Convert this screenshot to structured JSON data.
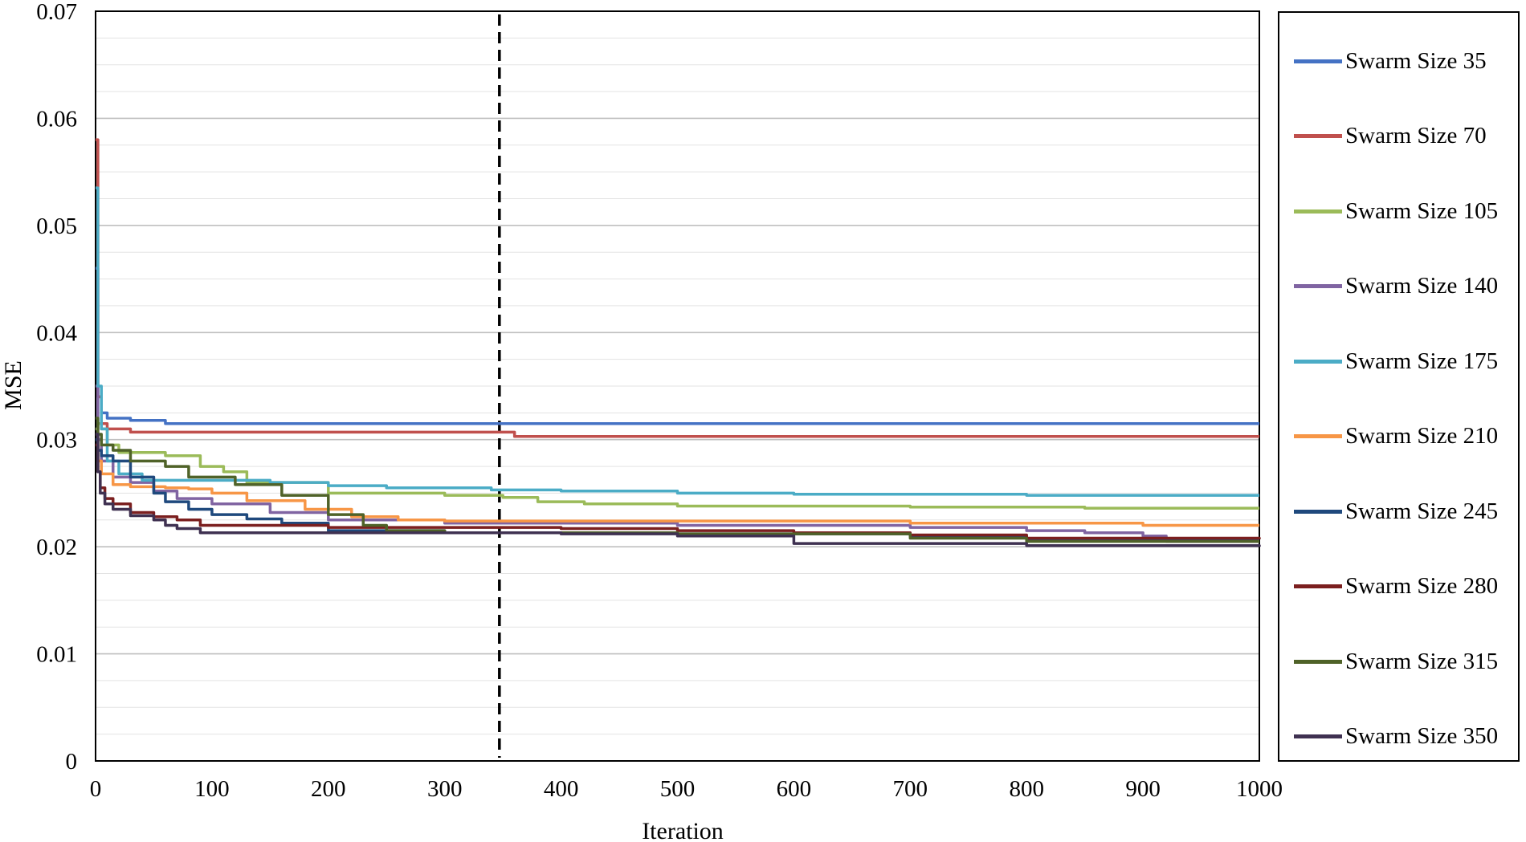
{
  "chart_data": {
    "type": "line",
    "title": "",
    "xlabel": "Iteration",
    "ylabel": "MSE",
    "xlim": [
      0,
      1000
    ],
    "ylim": [
      0,
      0.07
    ],
    "xticks": [
      0,
      100,
      200,
      300,
      400,
      500,
      600,
      700,
      800,
      900,
      1000
    ],
    "xtick_labels": [
      "0",
      "100",
      "200",
      "300",
      "400",
      "500",
      "600",
      "700",
      "800",
      "900",
      "1000"
    ],
    "yticks": [
      0,
      0.01,
      0.02,
      0.03,
      0.04,
      0.05,
      0.06,
      0.07
    ],
    "ytick_labels": [
      "0",
      "0.01",
      "0.02",
      "0.03",
      "0.04",
      "0.05",
      "0.06",
      "0.07"
    ],
    "grid": "horizontal",
    "legend_position": "right",
    "vline": {
      "x": 347,
      "style": "dashed"
    },
    "series": [
      {
        "name": "Swarm Size 35",
        "color": "#4472C4",
        "x": [
          0,
          2,
          5,
          10,
          30,
          60,
          100,
          200,
          400,
          600,
          800,
          1000
        ],
        "y": [
          0.046,
          0.034,
          0.0325,
          0.032,
          0.0318,
          0.0315,
          0.0315,
          0.0315,
          0.0315,
          0.0315,
          0.0315,
          0.0315
        ]
      },
      {
        "name": "Swarm Size 70",
        "color": "#C0504D",
        "x": [
          0,
          2,
          5,
          10,
          30,
          60,
          100,
          200,
          340,
          360,
          500,
          700,
          1000
        ],
        "y": [
          0.058,
          0.034,
          0.0315,
          0.031,
          0.0307,
          0.0307,
          0.0307,
          0.0307,
          0.0307,
          0.0303,
          0.0303,
          0.0303,
          0.0303
        ]
      },
      {
        "name": "Swarm Size 105",
        "color": "#9BBB59",
        "x": [
          0,
          2,
          5,
          10,
          20,
          60,
          90,
          110,
          130,
          200,
          300,
          350,
          380,
          420,
          500,
          700,
          850,
          1000
        ],
        "y": [
          0.031,
          0.0315,
          0.031,
          0.0295,
          0.0288,
          0.0285,
          0.0275,
          0.027,
          0.026,
          0.025,
          0.0248,
          0.0246,
          0.0242,
          0.024,
          0.0238,
          0.0237,
          0.0236,
          0.0236
        ]
      },
      {
        "name": "Swarm Size 140",
        "color": "#8064A2",
        "x": [
          0,
          2,
          5,
          15,
          30,
          50,
          70,
          100,
          150,
          200,
          300,
          500,
          700,
          800,
          850,
          900,
          920,
          1000
        ],
        "y": [
          0.035,
          0.03,
          0.028,
          0.0265,
          0.026,
          0.0252,
          0.0245,
          0.024,
          0.0232,
          0.0225,
          0.0222,
          0.022,
          0.0218,
          0.0215,
          0.0213,
          0.021,
          0.0205,
          0.0205
        ]
      },
      {
        "name": "Swarm Size 175",
        "color": "#4BACC6",
        "x": [
          0,
          2,
          5,
          10,
          20,
          40,
          100,
          150,
          200,
          250,
          340,
          400,
          500,
          600,
          800,
          1000
        ],
        "y": [
          0.0535,
          0.035,
          0.031,
          0.028,
          0.0268,
          0.0262,
          0.0262,
          0.026,
          0.0257,
          0.0255,
          0.0253,
          0.0252,
          0.025,
          0.0249,
          0.0248,
          0.0248
        ]
      },
      {
        "name": "Swarm Size 210",
        "color": "#F79646",
        "x": [
          0,
          2,
          5,
          15,
          30,
          60,
          80,
          100,
          130,
          180,
          220,
          260,
          300,
          350,
          500,
          700,
          900,
          1000
        ],
        "y": [
          0.03,
          0.028,
          0.0268,
          0.0258,
          0.0256,
          0.0255,
          0.0254,
          0.025,
          0.0243,
          0.0235,
          0.0228,
          0.0225,
          0.0224,
          0.0224,
          0.0224,
          0.0222,
          0.022,
          0.022
        ]
      },
      {
        "name": "Swarm Size 245",
        "color": "#1F497D",
        "x": [
          0,
          2,
          5,
          15,
          30,
          50,
          60,
          80,
          100,
          130,
          160,
          200,
          300,
          500,
          700,
          800,
          1000
        ],
        "y": [
          0.03,
          0.029,
          0.0285,
          0.028,
          0.0265,
          0.025,
          0.0242,
          0.0235,
          0.023,
          0.0226,
          0.0222,
          0.0215,
          0.0213,
          0.0212,
          0.021,
          0.0207,
          0.0207
        ]
      },
      {
        "name": "Swarm Size 280",
        "color": "#7B1F1F",
        "x": [
          0,
          2,
          4,
          8,
          15,
          30,
          50,
          70,
          90,
          120,
          200,
          400,
          500,
          600,
          700,
          800,
          1000
        ],
        "y": [
          0.0295,
          0.027,
          0.0255,
          0.0245,
          0.024,
          0.0232,
          0.0228,
          0.0225,
          0.022,
          0.022,
          0.0218,
          0.0217,
          0.0215,
          0.0213,
          0.0211,
          0.0208,
          0.0207
        ]
      },
      {
        "name": "Swarm Size 315",
        "color": "#4F6228",
        "x": [
          0,
          2,
          5,
          15,
          30,
          60,
          80,
          120,
          160,
          200,
          230,
          250,
          300,
          500,
          700,
          800,
          1000
        ],
        "y": [
          0.032,
          0.0305,
          0.0295,
          0.029,
          0.028,
          0.0275,
          0.0265,
          0.0258,
          0.0248,
          0.023,
          0.022,
          0.0215,
          0.0213,
          0.0212,
          0.0208,
          0.0205,
          0.0205
        ]
      },
      {
        "name": "Swarm Size 350",
        "color": "#3F3151",
        "x": [
          0,
          2,
          4,
          8,
          15,
          30,
          50,
          60,
          70,
          90,
          200,
          400,
          500,
          600,
          800,
          1000
        ],
        "y": [
          0.0305,
          0.027,
          0.025,
          0.024,
          0.0235,
          0.0229,
          0.0225,
          0.022,
          0.0217,
          0.0213,
          0.0213,
          0.0212,
          0.021,
          0.0203,
          0.0201,
          0.02
        ]
      }
    ]
  }
}
